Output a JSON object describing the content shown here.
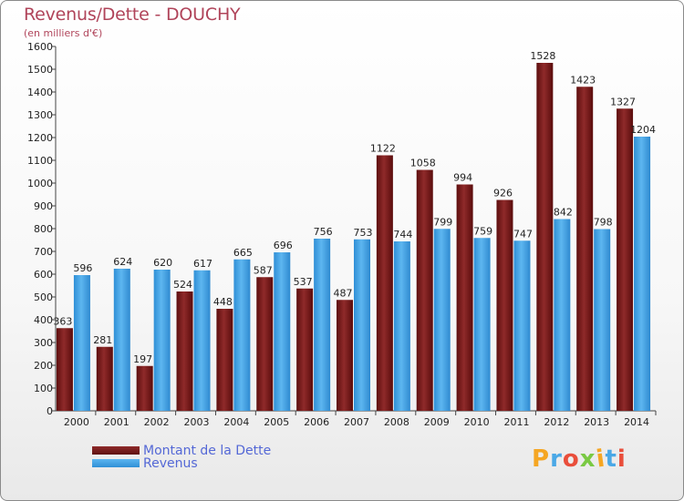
{
  "chart_data": {
    "type": "bar",
    "title": "Revenus/Dette - DOUCHY",
    "subtitle": "(en milliers d'€)",
    "categories": [
      "2000",
      "2001",
      "2002",
      "2003",
      "2004",
      "2005",
      "2006",
      "2007",
      "2008",
      "2009",
      "2010",
      "2011",
      "2012",
      "2013",
      "2014"
    ],
    "series": [
      {
        "name": "Montant de la Dette",
        "color": "#7a1a1a",
        "values": [
          363,
          281,
          197,
          524,
          448,
          587,
          537,
          487,
          1122,
          1058,
          994,
          926,
          1528,
          1423,
          1327
        ]
      },
      {
        "name": "Revenus",
        "color": "#4aa8e6",
        "values": [
          596,
          624,
          620,
          617,
          665,
          696,
          756,
          753,
          744,
          799,
          759,
          747,
          842,
          798,
          1204
        ]
      }
    ],
    "ylim": [
      0,
      1600
    ],
    "ytick_step": 100,
    "grid": false,
    "legend_position": "bottom-left"
  },
  "logo": {
    "text": "Proxiti"
  }
}
